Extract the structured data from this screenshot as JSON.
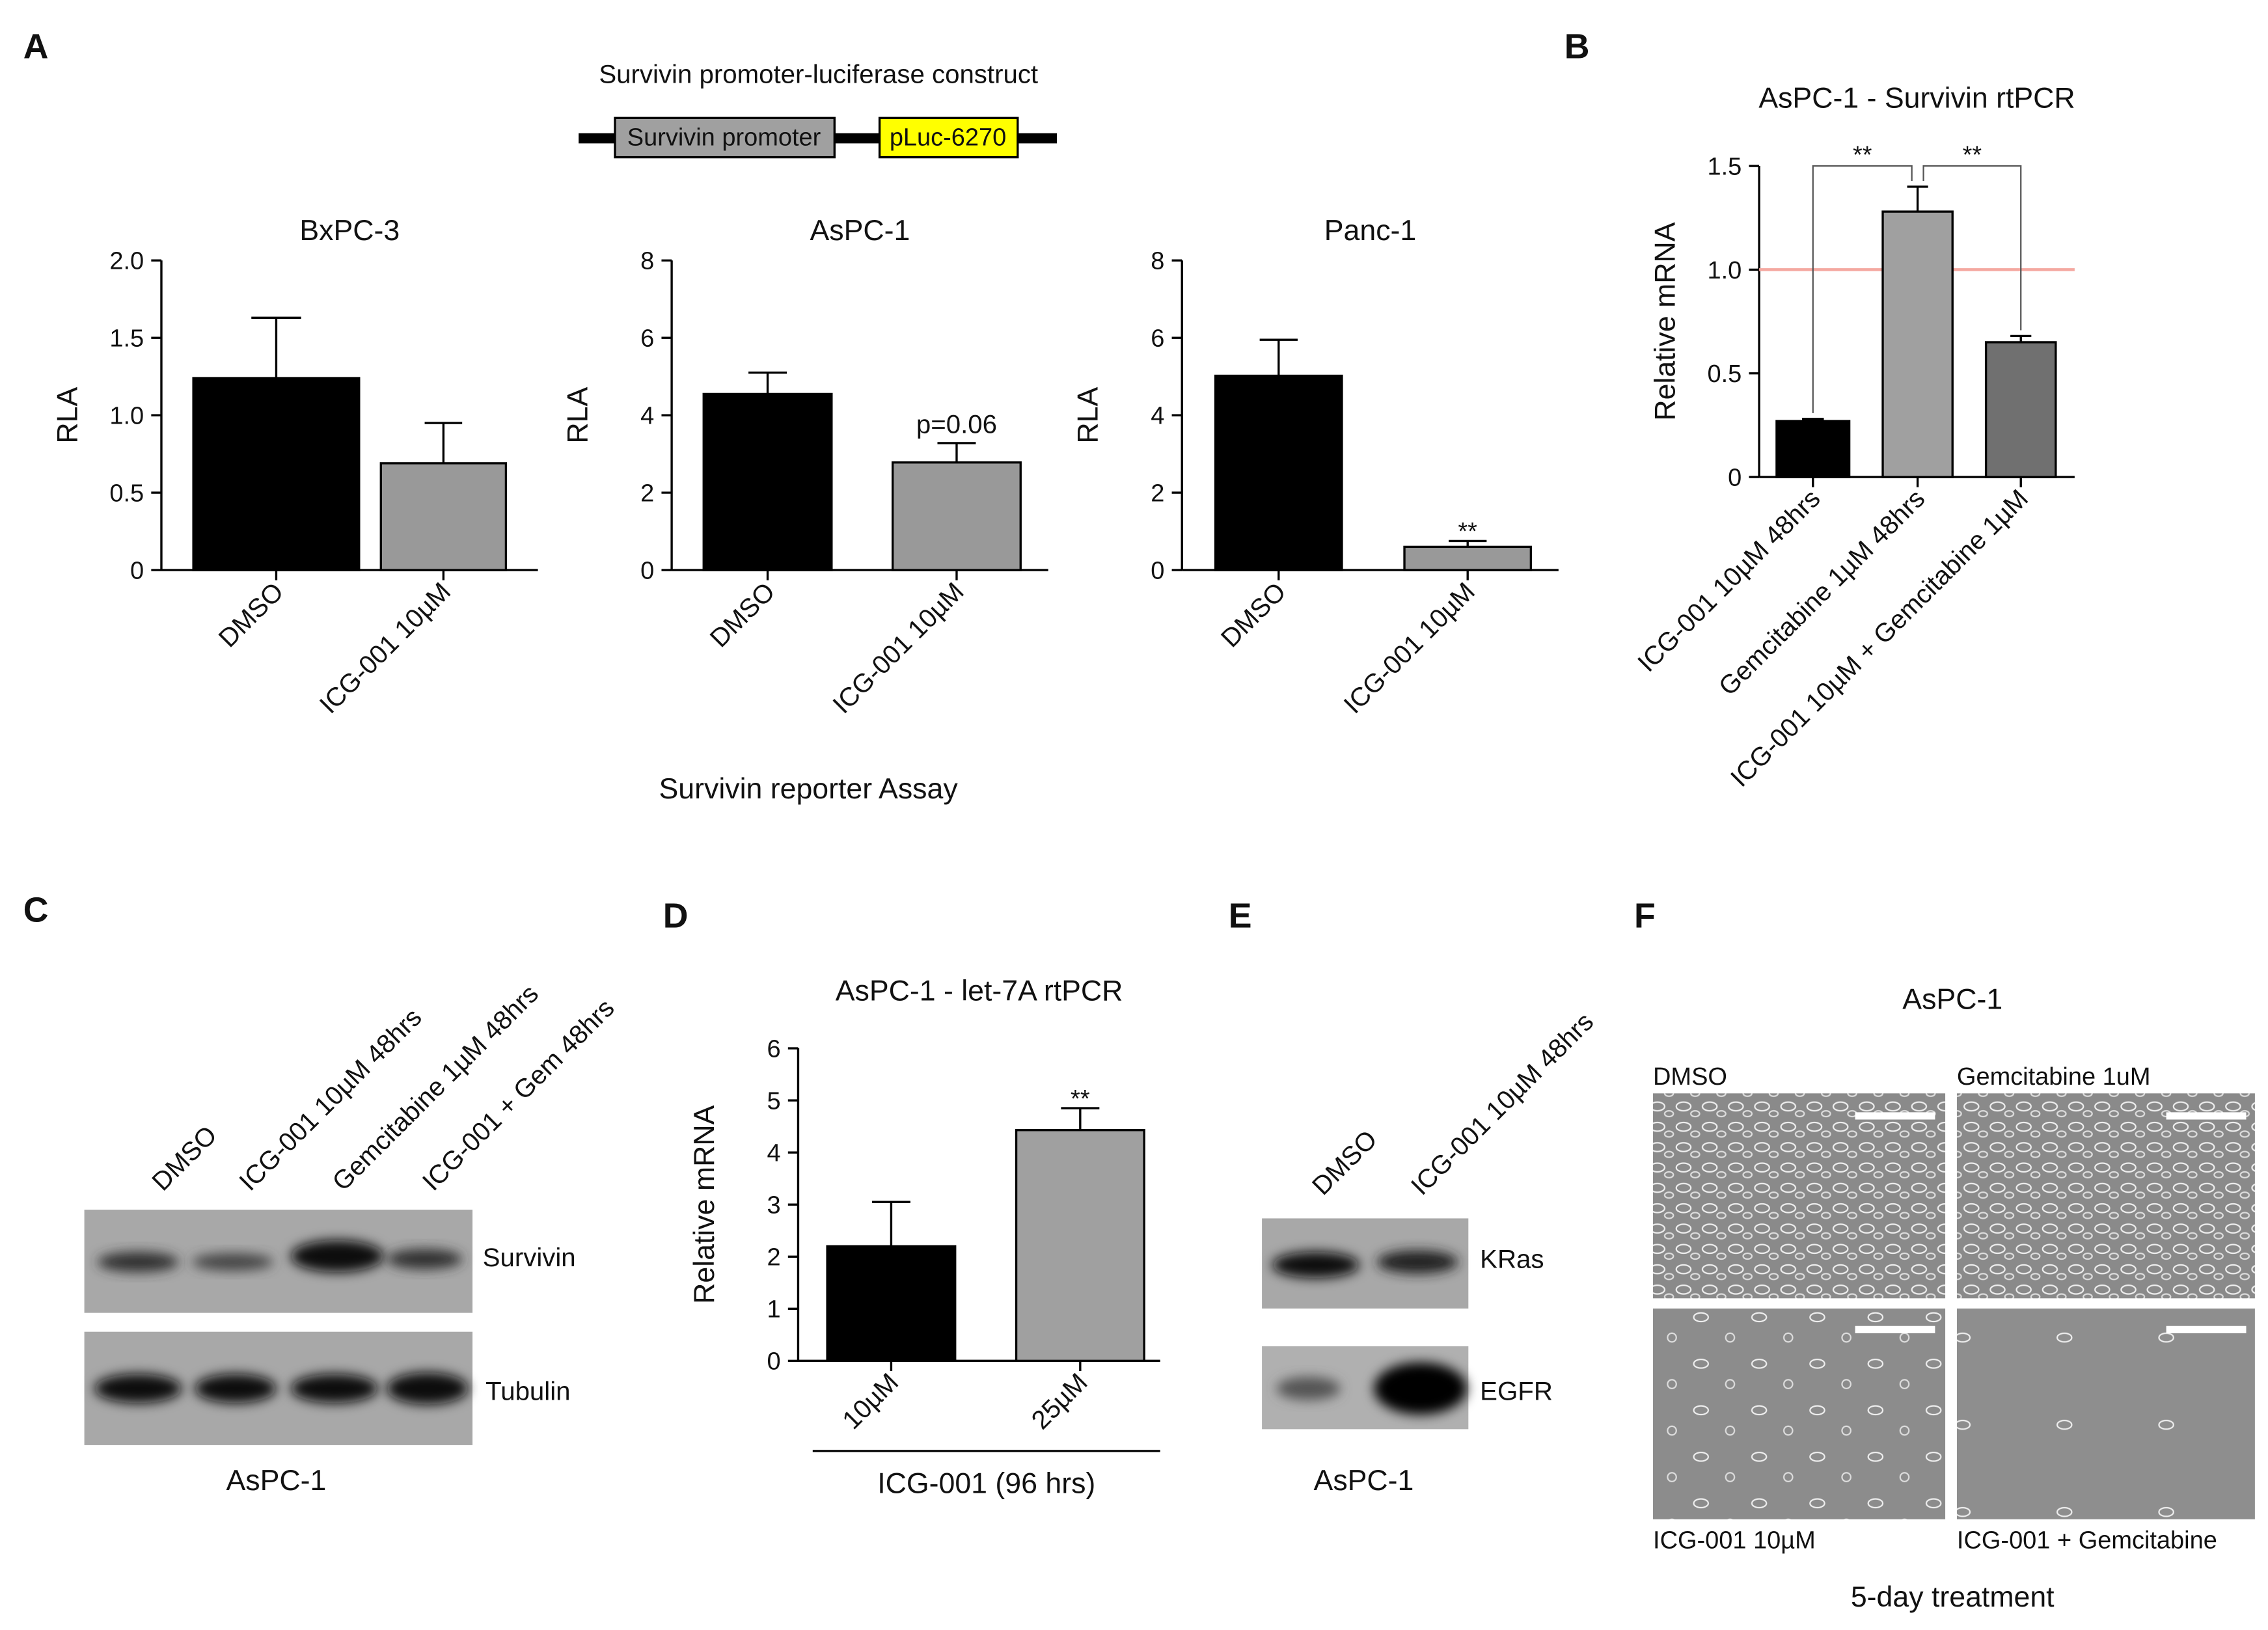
{
  "panel_labels": [
    "A",
    "B",
    "C",
    "D",
    "E",
    "F"
  ],
  "construct": {
    "title": "Survivin promoter-luciferase construct",
    "promoter": "Survivin promoter",
    "reporter": "pLuc-6270"
  },
  "panel_a_caption": "Survivin reporter Assay",
  "chart_data": [
    {
      "type": "bar",
      "title": "BxPC-3",
      "ylabel": "RLA",
      "categories": [
        "DMSO",
        "ICG-001 10µM"
      ],
      "values": [
        1.24,
        0.69
      ],
      "errors": [
        0.39,
        0.26
      ],
      "colors": [
        "#000000",
        "#999999"
      ],
      "ylim": [
        0,
        2
      ],
      "yticks": [
        0,
        0.5,
        {
          "value": 1,
          "label": "1.0"
        },
        1.5,
        {
          "value": 2,
          "label": "2.0"
        }
      ]
    },
    {
      "type": "bar",
      "title": "AsPC-1",
      "ylabel": "RLA",
      "categories": [
        "DMSO",
        "ICG-001 10µM"
      ],
      "values": [
        4.55,
        2.78
      ],
      "errors": [
        0.55,
        0.5
      ],
      "colors": [
        "#000000",
        "#999999"
      ],
      "ylim": [
        0,
        8
      ],
      "yticks": [
        0,
        2,
        4,
        6,
        8
      ],
      "bar_annotations": [
        null,
        "p=0.06"
      ]
    },
    {
      "type": "bar",
      "title": "Panc-1",
      "ylabel": "RLA",
      "categories": [
        "DMSO",
        "ICG-001 10µM"
      ],
      "values": [
        5.02,
        0.6
      ],
      "errors": [
        0.93,
        0.15
      ],
      "colors": [
        "#000000",
        "#999999"
      ],
      "ylim": [
        0,
        8
      ],
      "yticks": [
        0,
        2,
        4,
        6,
        8
      ],
      "bar_annotations": [
        null,
        "**"
      ]
    },
    {
      "type": "bar",
      "title": "AsPC-1 - Survivin rtPCR",
      "ylabel": "Relative mRNA",
      "categories": [
        "ICG-001 10µM 48hrs",
        "Gemcitabine 1µM 48hrs",
        "ICG-001 10µM + Gemcitabine 1µM"
      ],
      "values": [
        0.27,
        1.28,
        0.65
      ],
      "errors": [
        0.01,
        0.12,
        0.03
      ],
      "colors": [
        "#000000",
        "#a0a0a0",
        "#707070"
      ],
      "ylim": [
        0,
        1.5
      ],
      "yticks": [
        0,
        0.5,
        {
          "value": 1,
          "label": "1.0"
        },
        1.5
      ],
      "reference_line": 1,
      "reference_color": "#f4a8a0",
      "significance": [
        {
          "pair": [
            0,
            1
          ],
          "label": "**"
        },
        {
          "pair": [
            1,
            2
          ],
          "label": "**"
        }
      ]
    },
    {
      "type": "bar",
      "title": "AsPC-1 - let-7A rtPCR",
      "ylabel": "Relative mRNA",
      "xlabel": "ICG-001 (96 hrs)",
      "categories": [
        "10µM",
        "25µM"
      ],
      "values": [
        2.2,
        4.43
      ],
      "errors": [
        0.85,
        0.42
      ],
      "colors": [
        "#000000",
        "#a0a0a0"
      ],
      "ylim": [
        0,
        6
      ],
      "yticks": [
        0,
        1,
        2,
        3,
        4,
        5,
        6
      ],
      "bar_annotations": [
        null,
        "**"
      ]
    }
  ],
  "blot_c": {
    "lanes": [
      "DMSO",
      "ICG-001 10µM 48hrs",
      "Gemcitabine 1µM 48hrs",
      "ICG-001 + Gem 48hrs"
    ],
    "bands": [
      "Survivin",
      "Tubulin"
    ],
    "cell_line": "AsPC-1"
  },
  "blot_e": {
    "lanes": [
      "DMSO",
      "ICG-001 10µM 48hrs"
    ],
    "bands": [
      "KRas",
      "EGFR"
    ],
    "cell_line": "AsPC-1"
  },
  "panel_f": {
    "title": "AsPC-1",
    "images": [
      "DMSO",
      "Gemcitabine 1uM",
      "ICG-001 10µM",
      "ICG-001 + Gemcitabine"
    ],
    "caption": "5-day treatment"
  }
}
